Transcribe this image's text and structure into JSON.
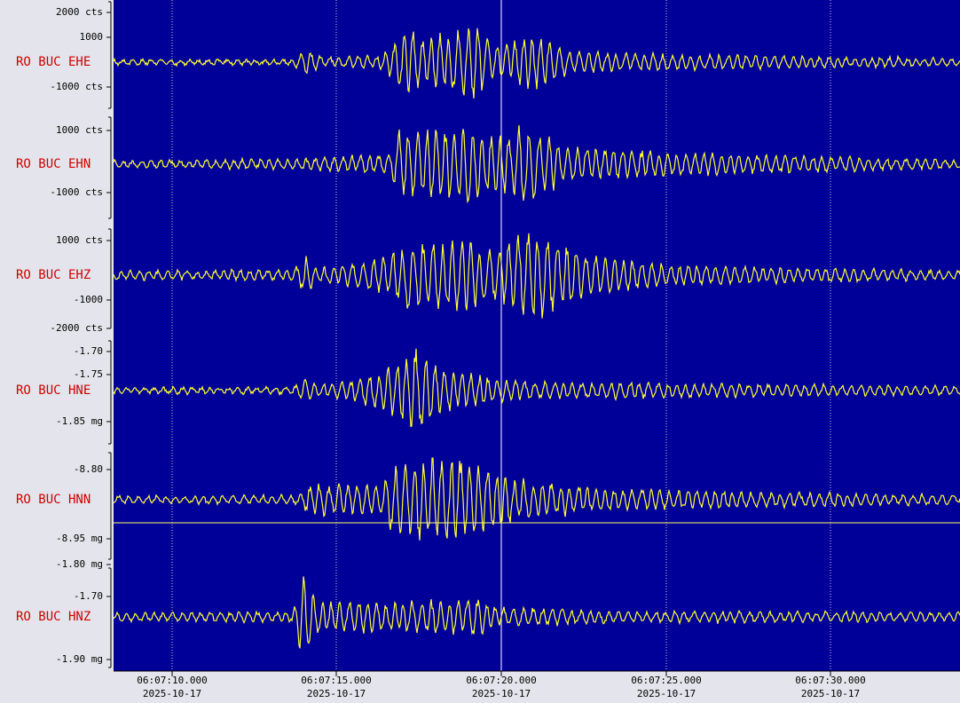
{
  "channels": [
    {
      "label": "RO BUC EHE",
      "ticks": [
        "2000 cts",
        "1000",
        "-1000 cts"
      ]
    },
    {
      "label": "RO BUC EHN",
      "ticks": [
        "1000 cts",
        "-1000 cts"
      ]
    },
    {
      "label": "RO BUC EHZ",
      "ticks": [
        "1000 cts",
        "-1000",
        "-2000 cts"
      ]
    },
    {
      "label": "RO BUC HNE",
      "ticks": [
        "-1.70",
        "-1.75",
        "-1.85 mg"
      ]
    },
    {
      "label": "RO BUC HNN",
      "ticks": [
        "-8.80",
        "-8.95 mg"
      ]
    },
    {
      "label": "RO BUC HNZ",
      "ticks": [
        "-1.80 mg",
        "-1.70",
        "-1.90 mg"
      ]
    }
  ],
  "time_axis": [
    {
      "time": "06:07:10.000",
      "date": "2025-10-17"
    },
    {
      "time": "06:07:15.000",
      "date": "2025-10-17"
    },
    {
      "time": "06:07:20.000",
      "date": "2025-10-17"
    },
    {
      "time": "06:07:25.000",
      "date": "2025-10-17"
    },
    {
      "time": "06:07:30.000",
      "date": "2025-10-17"
    }
  ]
}
